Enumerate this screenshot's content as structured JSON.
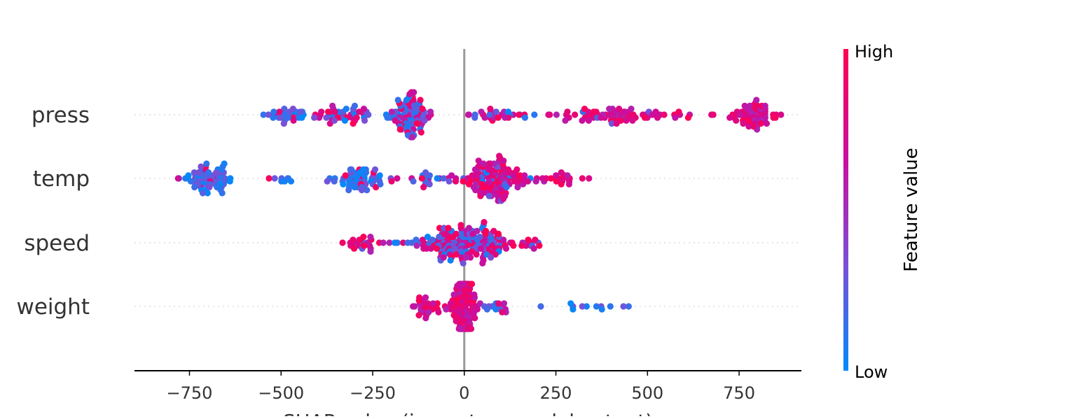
{
  "chart_data": {
    "type": "scatter",
    "subtype": "beeswarm",
    "xlabel": "SHAP value (impact on model output)",
    "xlim": [
      -900,
      920
    ],
    "xticks": [
      -750,
      -500,
      -250,
      0,
      250,
      500,
      750
    ],
    "xtick_labels": [
      "−750",
      "−500",
      "−250",
      "0",
      "250",
      "500",
      "750"
    ],
    "zero_line": 0,
    "features": [
      {
        "name": "press",
        "range": [
          -580,
          870
        ],
        "high_side": "right",
        "clusters": [
          {
            "center": -480,
            "spread": 60,
            "count": 30,
            "low": 0.8
          },
          {
            "center": -330,
            "spread": 70,
            "count": 45,
            "low": 0.45
          },
          {
            "center": -150,
            "spread": 50,
            "count": 90,
            "low": 0.6
          },
          {
            "center": 80,
            "spread": 90,
            "count": 30,
            "low": 0.4
          },
          {
            "center": 420,
            "spread": 170,
            "count": 80,
            "low": 0.05
          },
          {
            "center": 790,
            "spread": 60,
            "count": 60,
            "low": 0.0
          }
        ]
      },
      {
        "name": "temp",
        "range": [
          -830,
          380
        ],
        "high_side": "right",
        "clusters": [
          {
            "center": -700,
            "spread": 70,
            "count": 70,
            "low": 0.95
          },
          {
            "center": -500,
            "spread": 40,
            "count": 8,
            "low": 0.95
          },
          {
            "center": -280,
            "spread": 60,
            "count": 60,
            "low": 0.85
          },
          {
            "center": -100,
            "spread": 80,
            "count": 20,
            "low": 0.4
          },
          {
            "center": 80,
            "spread": 90,
            "count": 140,
            "low": 0.15
          },
          {
            "center": 270,
            "spread": 60,
            "count": 20,
            "low": 0.05
          }
        ]
      },
      {
        "name": "speed",
        "range": [
          -410,
          300
        ],
        "high_side": "mixed",
        "clusters": [
          {
            "center": -270,
            "spread": 60,
            "count": 25,
            "low": 0.1
          },
          {
            "center": -60,
            "spread": 90,
            "count": 90,
            "low": 0.5
          },
          {
            "center": 40,
            "spread": 70,
            "count": 90,
            "low": 0.35
          },
          {
            "center": 180,
            "spread": 40,
            "count": 15,
            "low": 0.2
          }
        ]
      },
      {
        "name": "weight",
        "range": [
          -200,
          520
        ],
        "high_side": "left",
        "clusters": [
          {
            "center": -100,
            "spread": 50,
            "count": 30,
            "low": 0.0
          },
          {
            "center": 0,
            "spread": 30,
            "count": 140,
            "low": 0.0
          },
          {
            "center": 100,
            "spread": 50,
            "count": 15,
            "low": 0.4
          },
          {
            "center": 380,
            "spread": 110,
            "count": 12,
            "low": 1.0
          }
        ]
      }
    ],
    "colorbar": {
      "title": "Feature value",
      "high_label": "High",
      "low_label": "Low",
      "colors": [
        "#008afb",
        "#7b4fd6",
        "#c90ea0",
        "#ff0052"
      ]
    }
  }
}
